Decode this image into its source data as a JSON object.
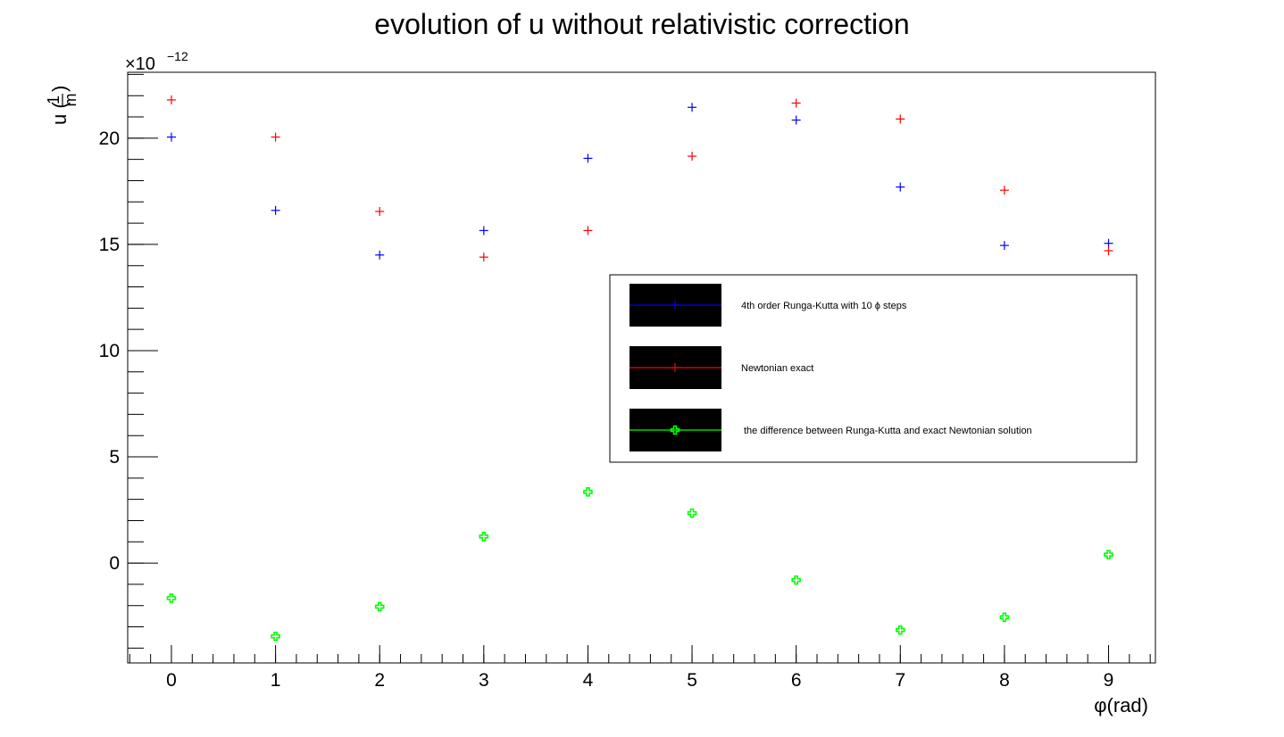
{
  "chart_data": {
    "type": "scatter",
    "title": "evolution of u without relativistic correction",
    "xlabel": "φ(rad)",
    "ylabel_prefix": "u (",
    "ylabel_num": "1",
    "ylabel_den": "m",
    "ylabel_suffix": ")",
    "y_multiplier": "×10",
    "y_exponent": "−12",
    "xlim": [
      -0.42,
      9.45
    ],
    "ylim": [
      -4.7,
      23.1
    ],
    "x_ticks": [
      0,
      1,
      2,
      3,
      4,
      5,
      6,
      7,
      8,
      9
    ],
    "y_ticks": [
      0,
      5,
      10,
      15,
      20
    ],
    "x_tick_labels": [
      "0",
      "1",
      "2",
      "3",
      "4",
      "5",
      "6",
      "7",
      "8",
      "9"
    ],
    "y_tick_labels": [
      "0",
      "5",
      "10",
      "15",
      "20"
    ],
    "grid": false,
    "legend_position": "right",
    "series": [
      {
        "name": "4th order Runga-Kutta with 10 ϕ steps",
        "color": "#0000ff",
        "marker": "plus",
        "x": [
          0,
          1,
          2,
          3,
          4,
          5,
          6,
          7,
          8,
          9
        ],
        "y": [
          20.05,
          16.6,
          14.5,
          15.65,
          19.05,
          21.45,
          20.85,
          17.7,
          14.95,
          15.05
        ]
      },
      {
        "name": "Newtonian exact",
        "color": "#ff0000",
        "marker": "plus",
        "x": [
          0,
          1,
          2,
          3,
          4,
          5,
          6,
          7,
          8,
          9
        ],
        "y": [
          21.8,
          20.05,
          16.55,
          14.4,
          15.65,
          19.15,
          21.65,
          20.9,
          17.55,
          14.7
        ]
      },
      {
        "name": "the difference between Runga-Kutta and exact Newtonian solution",
        "color": "#00ff00",
        "marker": "cross",
        "x": [
          0,
          1,
          2,
          3,
          4,
          5,
          6,
          7,
          8,
          9
        ],
        "y": [
          -1.65,
          -3.45,
          -2.05,
          1.25,
          3.35,
          2.35,
          -0.8,
          -3.15,
          -2.55,
          0.4
        ]
      }
    ]
  }
}
